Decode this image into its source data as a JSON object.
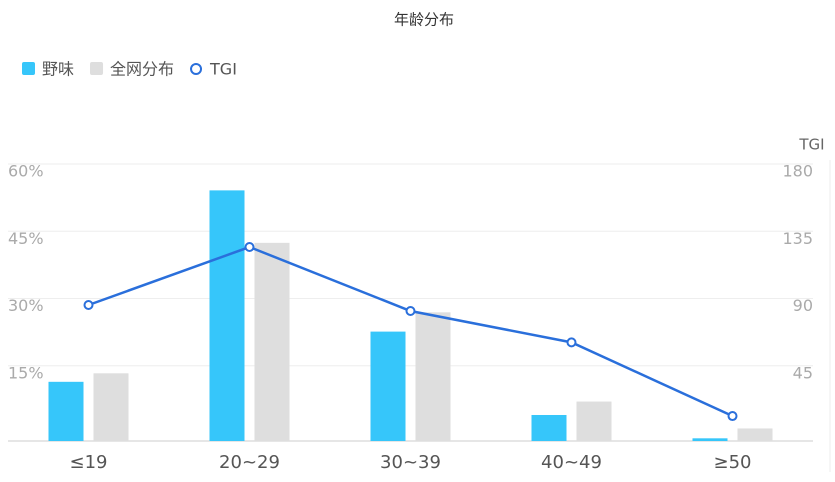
{
  "chart_data": {
    "type": "bar",
    "title": "年龄分布",
    "categories": [
      "≤19",
      "20~29",
      "30~39",
      "40~49",
      "≥50"
    ],
    "series": [
      {
        "name": "野味",
        "type": "bar",
        "color": "#36c6fa",
        "values": [
          13.2,
          55.9,
          24.4,
          5.8,
          0.6
        ]
      },
      {
        "name": "全网分布",
        "type": "bar",
        "color": "#dedede",
        "values": [
          15.1,
          44.2,
          28.7,
          8.8,
          2.8
        ]
      },
      {
        "name": "TGI",
        "type": "line",
        "axis": "y2",
        "color": "#2a6fdb",
        "values": [
          91,
          129.8,
          87,
          66,
          16.7
        ]
      }
    ],
    "ylim": [
      0,
      60
    ],
    "yticks": [
      {
        "value": 15,
        "label": "15%"
      },
      {
        "value": 30,
        "label": "30%"
      },
      {
        "value": 45,
        "label": "45%"
      },
      {
        "value": 60,
        "label": "60%"
      }
    ],
    "y2label": "TGI",
    "y2lim": [
      0,
      180
    ],
    "y2ticks": [
      45,
      90,
      135,
      180
    ],
    "grid": true,
    "legend": "top-left"
  }
}
